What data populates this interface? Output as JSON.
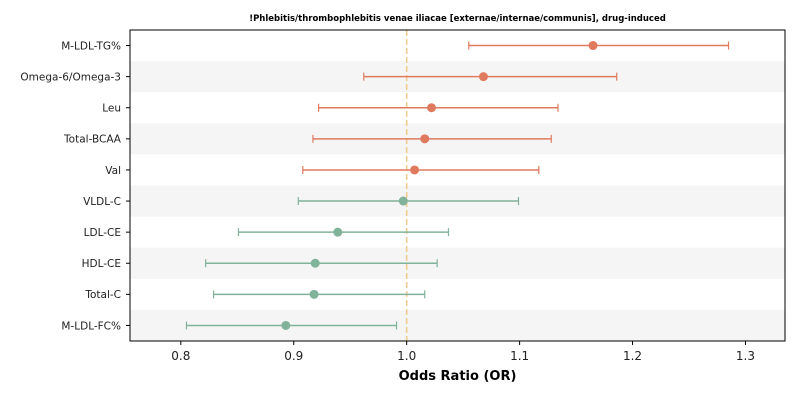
{
  "chart_data": {
    "type": "forest",
    "title": "!Phlebitis/thrombophlebitis venae iliacae [externae/internae/communis], drug-induced",
    "xlabel": "Odds Ratio (OR)",
    "ylabel": "",
    "xlim": [
      0.755,
      1.335
    ],
    "xticks": [
      0.8,
      0.9,
      1.0,
      1.1,
      1.2,
      1.3
    ],
    "xtick_labels": [
      "0.8",
      "0.9",
      "1.0",
      "1.1",
      "1.2",
      "1.3"
    ],
    "reference_line": 1.0,
    "grid": false,
    "alternating_row_shading": true,
    "colors": {
      "increased": "#e07a5f",
      "decreased": "#81b29a",
      "reference_line": "#f2cc8f",
      "row_band": "#f5f5f5"
    },
    "rows": [
      {
        "label": "M-LDL-TG%",
        "or": 1.165,
        "lo": 1.055,
        "hi": 1.285,
        "group": "increased"
      },
      {
        "label": "Omega-6/Omega-3",
        "or": 1.068,
        "lo": 0.962,
        "hi": 1.186,
        "group": "increased"
      },
      {
        "label": "Leu",
        "or": 1.022,
        "lo": 0.922,
        "hi": 1.134,
        "group": "increased"
      },
      {
        "label": "Total-BCAA",
        "or": 1.016,
        "lo": 0.917,
        "hi": 1.128,
        "group": "increased"
      },
      {
        "label": "Val",
        "or": 1.007,
        "lo": 0.908,
        "hi": 1.117,
        "group": "increased"
      },
      {
        "label": "VLDL-C",
        "or": 0.997,
        "lo": 0.904,
        "hi": 1.099,
        "group": "decreased"
      },
      {
        "label": "LDL-CE",
        "or": 0.939,
        "lo": 0.851,
        "hi": 1.037,
        "group": "decreased"
      },
      {
        "label": "HDL-CE",
        "or": 0.919,
        "lo": 0.822,
        "hi": 1.027,
        "group": "decreased"
      },
      {
        "label": "Total-C",
        "or": 0.918,
        "lo": 0.829,
        "hi": 1.016,
        "group": "decreased"
      },
      {
        "label": "M-LDL-FC%",
        "or": 0.893,
        "lo": 0.805,
        "hi": 0.991,
        "group": "decreased"
      }
    ]
  }
}
